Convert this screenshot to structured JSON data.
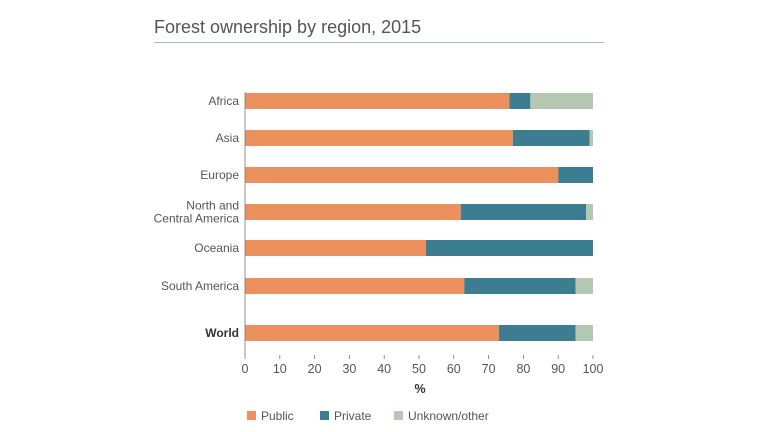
{
  "title": "Forest ownership by region, 2015",
  "chart_data": {
    "type": "bar",
    "orientation": "horizontal",
    "stacked": true,
    "title": "Forest ownership by region, 2015",
    "xlabel": "%",
    "ylabel": "",
    "xlim": [
      0,
      100
    ],
    "xticks": [
      0,
      10,
      20,
      30,
      40,
      50,
      60,
      70,
      80,
      90,
      100
    ],
    "categories": [
      "Africa",
      "Asia",
      "Europe",
      "North and Central America",
      "Oceania",
      "South America",
      "World"
    ],
    "category_lines": [
      [
        "Africa"
      ],
      [
        "Asia"
      ],
      [
        "Europe"
      ],
      [
        "North and",
        "Central America"
      ],
      [
        "Oceania"
      ],
      [
        "South America"
      ],
      [
        "World"
      ]
    ],
    "emphasized_category": "World",
    "series": [
      {
        "name": "Public",
        "color": "#ec915d",
        "values": [
          76,
          77,
          90,
          62,
          52,
          63,
          73
        ]
      },
      {
        "name": "Private",
        "color": "#3d7d91",
        "values": [
          6,
          22,
          10,
          36,
          48,
          32,
          22
        ]
      },
      {
        "name": "Unknown/other",
        "color": "#b6c7b2",
        "values": [
          18,
          1,
          0,
          2,
          0,
          5,
          5
        ]
      }
    ],
    "grid": false,
    "legend_position": "bottom"
  }
}
